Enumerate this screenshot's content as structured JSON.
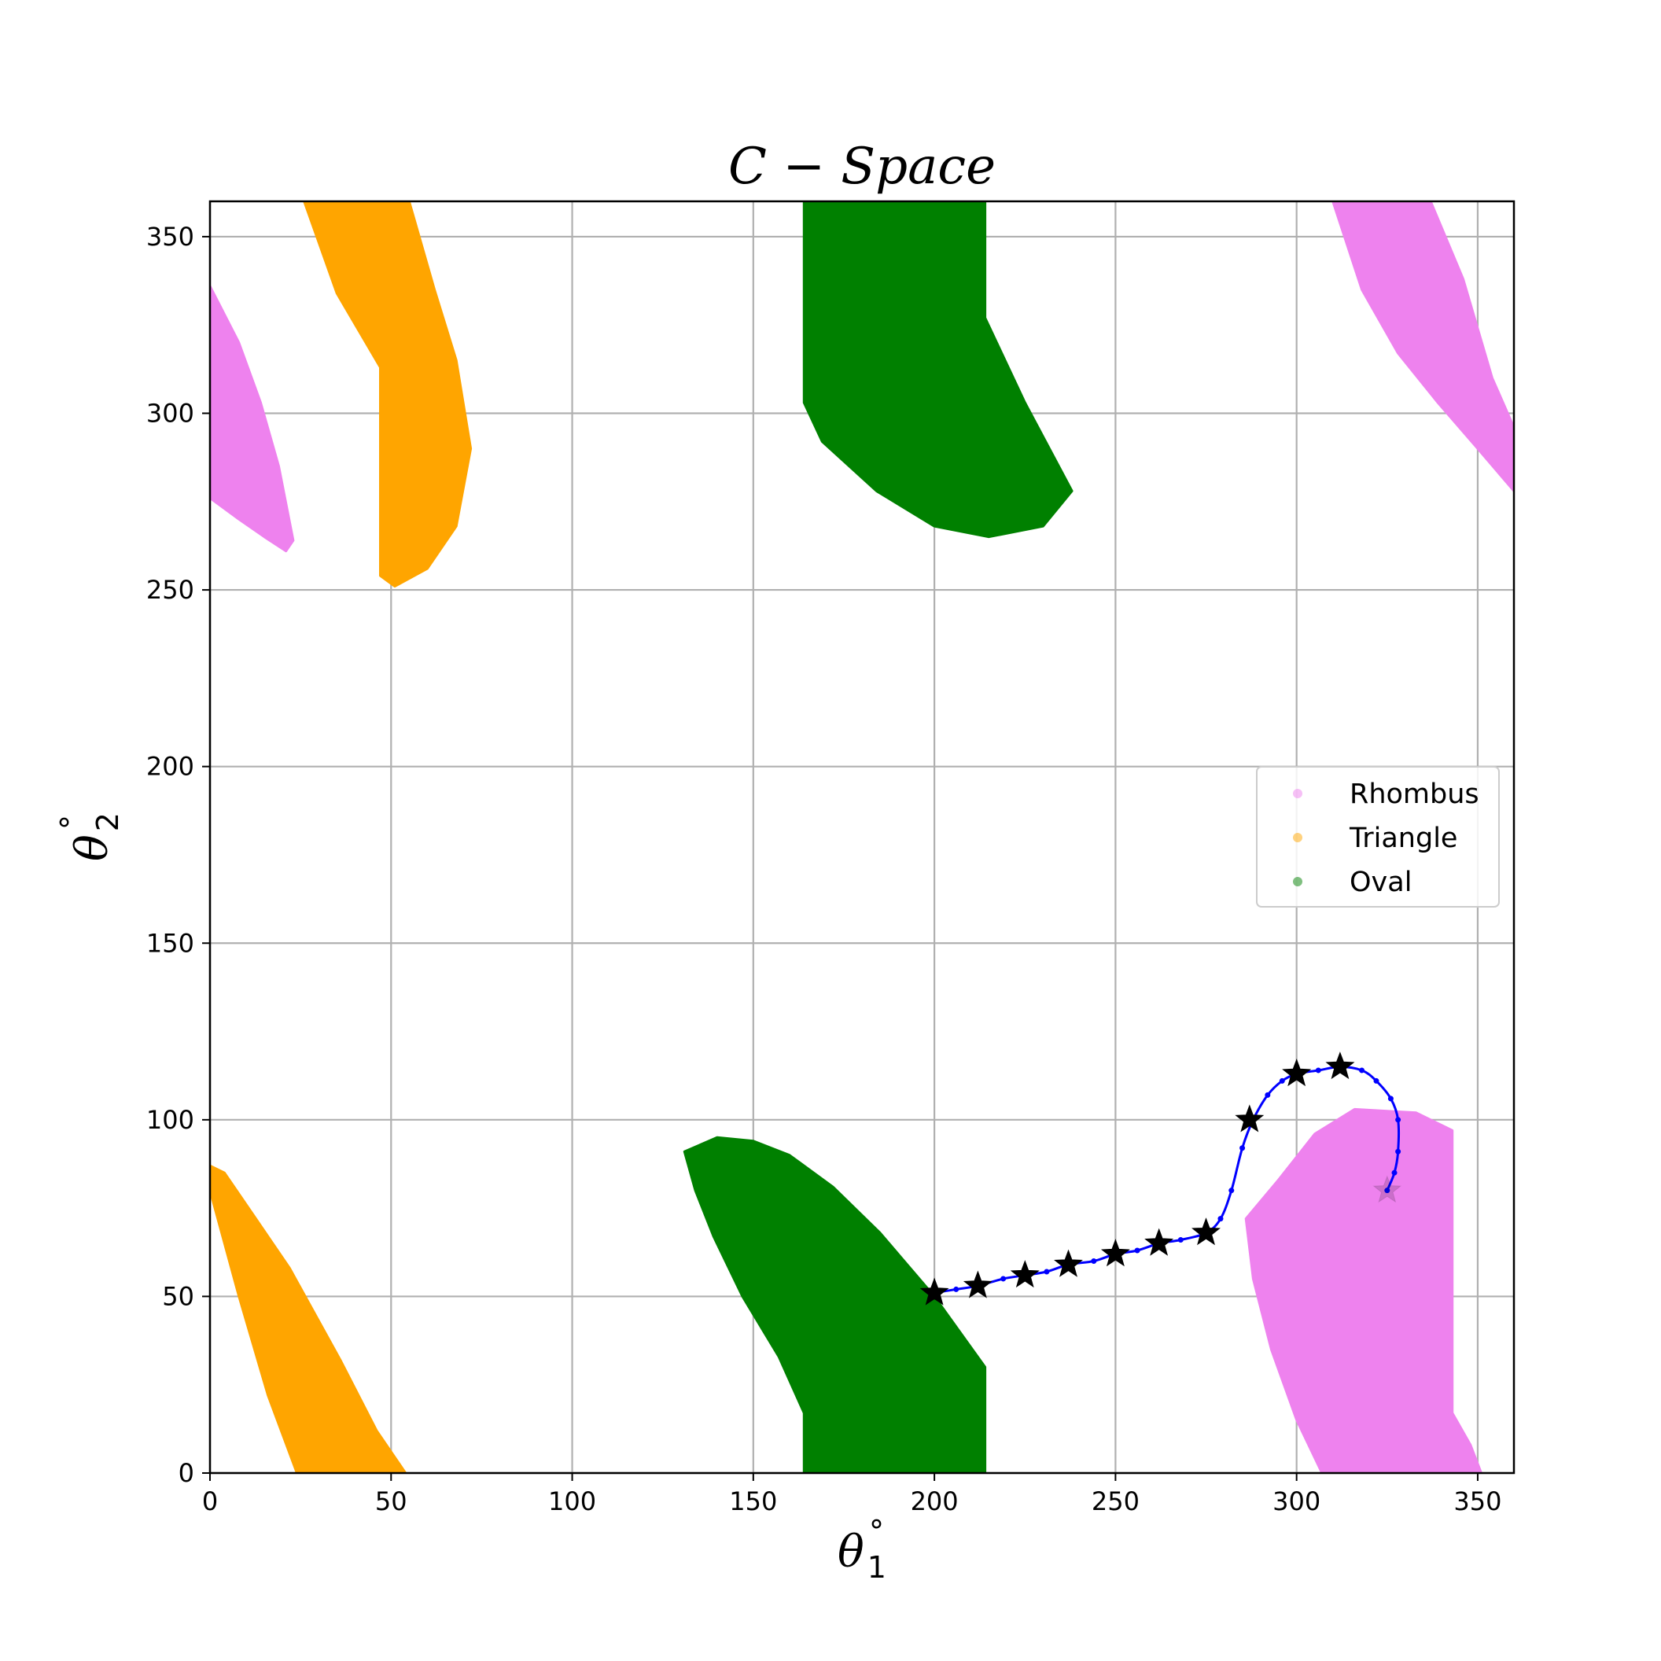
{
  "chart_data": {
    "type": "scatter",
    "title": "C − Space",
    "xlabel": {
      "symbol": "θ",
      "sub": "1",
      "sup": "°"
    },
    "ylabel": {
      "symbol": "θ",
      "sub": "2",
      "sup": "°"
    },
    "xlim": [
      0,
      360
    ],
    "ylim": [
      0,
      360
    ],
    "xticks": [
      0,
      50,
      100,
      150,
      200,
      250,
      300,
      350
    ],
    "yticks": [
      0,
      50,
      100,
      150,
      200,
      250,
      300,
      350
    ],
    "grid": true,
    "legend_position": "center-right",
    "series": [
      {
        "name": "Rhombus",
        "color": "#ee82ee",
        "regions": [
          [
            [
              0,
              336
            ],
            [
              8,
              320
            ],
            [
              14,
              303
            ],
            [
              19,
              285
            ],
            [
              23,
              264
            ],
            [
              21,
              261
            ],
            [
              15,
              265
            ],
            [
              8,
              270
            ],
            [
              0,
              276
            ]
          ],
          [
            [
              310,
              360
            ],
            [
              337,
              360
            ],
            [
              346,
              338
            ],
            [
              354,
              310
            ],
            [
              360,
              296
            ],
            [
              360,
              278
            ],
            [
              350,
              290
            ],
            [
              339,
              303
            ],
            [
              328,
              317
            ],
            [
              318,
              335
            ]
          ],
          [
            [
              295,
              83
            ],
            [
              305,
              96
            ],
            [
              316,
              103
            ],
            [
              333,
              102
            ],
            [
              343,
              97
            ],
            [
              343,
              17
            ],
            [
              348,
              8
            ],
            [
              351,
              0
            ],
            [
              307,
              0
            ],
            [
              300,
              15
            ],
            [
              293,
              35
            ],
            [
              288,
              55
            ],
            [
              286,
              72
            ]
          ]
        ]
      },
      {
        "name": "Triangle",
        "color": "#ffa500",
        "regions": [
          [
            [
              26,
              360
            ],
            [
              55,
              360
            ],
            [
              62,
              335
            ],
            [
              68,
              315
            ],
            [
              72,
              290
            ],
            [
              68,
              268
            ],
            [
              60,
              256
            ],
            [
              51,
              251
            ],
            [
              47,
              254
            ],
            [
              47,
              313
            ],
            [
              35,
              334
            ]
          ],
          [
            [
              0,
              87
            ],
            [
              4,
              85
            ],
            [
              12,
              73
            ],
            [
              22,
              58
            ],
            [
              36,
              32
            ],
            [
              46,
              12
            ],
            [
              54,
              0
            ],
            [
              24,
              0
            ],
            [
              16,
              22
            ],
            [
              8,
              50
            ],
            [
              0,
              80
            ]
          ]
        ]
      },
      {
        "name": "Oval",
        "color": "#008000",
        "regions": [
          [
            [
              164,
              360
            ],
            [
              214,
              360
            ],
            [
              214,
              327
            ],
            [
              225,
              303
            ],
            [
              238,
              278
            ],
            [
              230,
              268
            ],
            [
              215,
              265
            ],
            [
              200,
              268
            ],
            [
              184,
              278
            ],
            [
              169,
              292
            ],
            [
              164,
              303
            ]
          ],
          [
            [
              131,
              91
            ],
            [
              140,
              95
            ],
            [
              150,
              94
            ],
            [
              160,
              90
            ],
            [
              172,
              81
            ],
            [
              185,
              68
            ],
            [
              200,
              50
            ],
            [
              214,
              30
            ],
            [
              214,
              0
            ],
            [
              164,
              0
            ],
            [
              164,
              17
            ],
            [
              157,
              33
            ],
            [
              147,
              50
            ],
            [
              139,
              67
            ],
            [
              134,
              80
            ]
          ]
        ]
      }
    ],
    "path": {
      "color": "#0000ff",
      "points": [
        [
          200,
          51
        ],
        [
          206,
          52
        ],
        [
          212,
          53
        ],
        [
          219,
          55
        ],
        [
          225,
          56
        ],
        [
          231,
          57
        ],
        [
          237,
          59
        ],
        [
          244,
          60
        ],
        [
          250,
          62
        ],
        [
          256,
          63
        ],
        [
          262,
          65
        ],
        [
          268,
          66
        ],
        [
          275,
          68
        ],
        [
          279,
          72
        ],
        [
          282,
          80
        ],
        [
          285,
          92
        ],
        [
          288,
          100
        ],
        [
          292,
          107
        ],
        [
          296,
          111
        ],
        [
          300,
          113
        ],
        [
          306,
          114
        ],
        [
          312,
          115
        ],
        [
          318,
          114
        ],
        [
          322,
          111
        ],
        [
          326,
          106
        ],
        [
          328,
          100
        ],
        [
          328,
          91
        ],
        [
          327,
          85
        ],
        [
          325,
          80
        ]
      ]
    },
    "waypoints": [
      [
        200,
        51
      ],
      [
        212,
        53
      ],
      [
        225,
        56
      ],
      [
        237,
        59
      ],
      [
        250,
        62
      ],
      [
        262,
        65
      ],
      [
        275,
        68
      ],
      [
        287,
        100
      ],
      [
        300,
        113
      ],
      [
        312,
        115
      ],
      [
        325,
        80
      ]
    ]
  }
}
